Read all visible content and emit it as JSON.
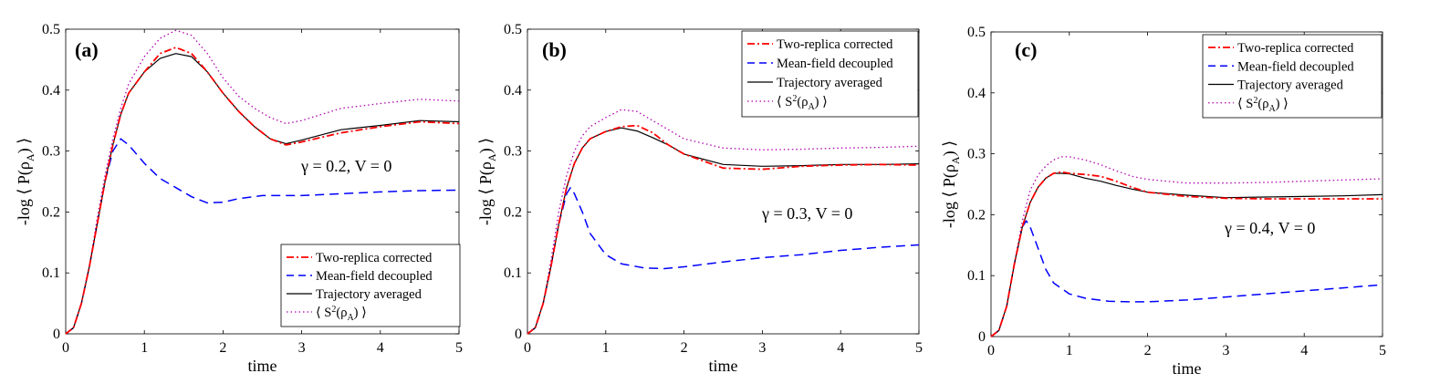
{
  "chart_data": [
    {
      "type": "line",
      "panel_label": "(a)",
      "annotation": "γ = 0.2, V = 0",
      "xlabel": "time",
      "ylabel_prefix": "-log ⟨ P(ρ",
      "ylabel_sub": "A",
      "ylabel_suffix": ") ⟩",
      "xlim": [
        0,
        5
      ],
      "ylim": [
        0,
        0.5
      ],
      "xticks": [
        "0",
        "1",
        "2",
        "3",
        "4",
        "5"
      ],
      "yticks": [
        "0",
        "0.1",
        "0.2",
        "0.3",
        "0.4",
        "0.5"
      ],
      "legend_position": "bottom-right",
      "series": [
        {
          "name": "Two-replica corrected",
          "color": "#ff0000",
          "style": "dashdot",
          "x": [
            0,
            0.1,
            0.2,
            0.3,
            0.4,
            0.5,
            0.6,
            0.7,
            0.8,
            1.0,
            1.2,
            1.4,
            1.6,
            1.8,
            2.0,
            2.2,
            2.4,
            2.6,
            2.8,
            3.0,
            3.5,
            4.0,
            4.5,
            5.0
          ],
          "y": [
            0,
            0.01,
            0.05,
            0.11,
            0.18,
            0.25,
            0.31,
            0.36,
            0.395,
            0.43,
            0.46,
            0.47,
            0.46,
            0.43,
            0.395,
            0.365,
            0.34,
            0.32,
            0.31,
            0.315,
            0.33,
            0.34,
            0.348,
            0.345
          ]
        },
        {
          "name": "Mean-field decoupled",
          "color": "#0000ff",
          "style": "dashed",
          "x": [
            0,
            0.1,
            0.2,
            0.3,
            0.4,
            0.5,
            0.6,
            0.7,
            0.8,
            1.0,
            1.2,
            1.4,
            1.6,
            1.8,
            2.0,
            2.2,
            2.5,
            3.0,
            3.5,
            4.0,
            4.5,
            5.0
          ],
          "y": [
            0,
            0.01,
            0.05,
            0.11,
            0.18,
            0.25,
            0.3,
            0.32,
            0.31,
            0.28,
            0.255,
            0.24,
            0.225,
            0.215,
            0.216,
            0.222,
            0.227,
            0.227,
            0.23,
            0.233,
            0.235,
            0.236
          ]
        },
        {
          "name": "Trajectory averaged",
          "color": "#000000",
          "style": "solid",
          "x": [
            0,
            0.1,
            0.2,
            0.3,
            0.4,
            0.5,
            0.6,
            0.7,
            0.8,
            1.0,
            1.2,
            1.4,
            1.6,
            1.8,
            2.0,
            2.2,
            2.4,
            2.6,
            2.8,
            3.0,
            3.5,
            4.0,
            4.5,
            5.0
          ],
          "y": [
            0,
            0.01,
            0.05,
            0.11,
            0.18,
            0.25,
            0.31,
            0.36,
            0.395,
            0.43,
            0.452,
            0.46,
            0.455,
            0.43,
            0.395,
            0.365,
            0.34,
            0.32,
            0.312,
            0.318,
            0.335,
            0.342,
            0.35,
            0.348
          ]
        },
        {
          "name": "⟨ S²(ρ_A) ⟩",
          "color": "#b000b0",
          "style": "dotted",
          "x": [
            0,
            0.1,
            0.2,
            0.3,
            0.4,
            0.5,
            0.6,
            0.7,
            0.8,
            1.0,
            1.2,
            1.4,
            1.6,
            1.8,
            2.0,
            2.2,
            2.4,
            2.6,
            2.8,
            3.0,
            3.5,
            4.0,
            4.5,
            5.0
          ],
          "y": [
            0,
            0.01,
            0.05,
            0.11,
            0.19,
            0.26,
            0.32,
            0.37,
            0.41,
            0.455,
            0.485,
            0.498,
            0.49,
            0.46,
            0.42,
            0.39,
            0.37,
            0.355,
            0.345,
            0.35,
            0.37,
            0.378,
            0.385,
            0.382
          ]
        }
      ]
    },
    {
      "type": "line",
      "panel_label": "(b)",
      "annotation": "γ = 0.3, V = 0",
      "xlabel": "time",
      "ylabel_prefix": "-log ⟨ P(ρ",
      "ylabel_sub": "A",
      "ylabel_suffix": ") ⟩",
      "xlim": [
        0,
        5
      ],
      "ylim": [
        0,
        0.5
      ],
      "xticks": [
        "0",
        "1",
        "2",
        "3",
        "4",
        "5"
      ],
      "yticks": [
        "0",
        "0.1",
        "0.2",
        "0.3",
        "0.4",
        "0.5"
      ],
      "legend_position": "top-right",
      "series": [
        {
          "name": "Two-replica corrected",
          "color": "#ff0000",
          "style": "dashdot",
          "x": [
            0,
            0.1,
            0.2,
            0.3,
            0.4,
            0.5,
            0.6,
            0.7,
            0.8,
            1.0,
            1.2,
            1.4,
            1.6,
            1.8,
            2.0,
            2.5,
            3.0,
            3.5,
            4.0,
            4.5,
            5.0
          ],
          "y": [
            0,
            0.01,
            0.05,
            0.11,
            0.18,
            0.24,
            0.28,
            0.305,
            0.32,
            0.332,
            0.34,
            0.342,
            0.33,
            0.31,
            0.295,
            0.272,
            0.27,
            0.275,
            0.277,
            0.278,
            0.277
          ]
        },
        {
          "name": "Mean-field decoupled",
          "color": "#0000ff",
          "style": "dashed",
          "x": [
            0,
            0.1,
            0.2,
            0.3,
            0.4,
            0.5,
            0.55,
            0.6,
            0.7,
            0.8,
            1.0,
            1.2,
            1.5,
            1.75,
            2.0,
            2.5,
            3.0,
            3.5,
            4.0,
            4.5,
            5.0
          ],
          "y": [
            0,
            0.01,
            0.05,
            0.11,
            0.18,
            0.23,
            0.24,
            0.23,
            0.2,
            0.165,
            0.13,
            0.115,
            0.108,
            0.107,
            0.11,
            0.118,
            0.125,
            0.13,
            0.137,
            0.142,
            0.146
          ]
        },
        {
          "name": "Trajectory averaged",
          "color": "#000000",
          "style": "solid",
          "x": [
            0,
            0.1,
            0.2,
            0.3,
            0.4,
            0.5,
            0.6,
            0.7,
            0.8,
            1.0,
            1.2,
            1.4,
            1.6,
            1.8,
            2.0,
            2.5,
            3.0,
            3.5,
            4.0,
            4.5,
            5.0
          ],
          "y": [
            0,
            0.01,
            0.05,
            0.11,
            0.18,
            0.24,
            0.28,
            0.305,
            0.32,
            0.332,
            0.338,
            0.333,
            0.322,
            0.31,
            0.295,
            0.278,
            0.275,
            0.276,
            0.278,
            0.278,
            0.279
          ]
        },
        {
          "name": "⟨ S²(ρ_A) ⟩",
          "color": "#b000b0",
          "style": "dotted",
          "x": [
            0,
            0.1,
            0.2,
            0.3,
            0.4,
            0.5,
            0.6,
            0.7,
            0.8,
            1.0,
            1.2,
            1.4,
            1.6,
            1.8,
            2.0,
            2.5,
            3.0,
            3.5,
            4.0,
            4.5,
            5.0
          ],
          "y": [
            0,
            0.01,
            0.05,
            0.12,
            0.2,
            0.26,
            0.3,
            0.325,
            0.34,
            0.355,
            0.368,
            0.365,
            0.35,
            0.335,
            0.32,
            0.305,
            0.302,
            0.303,
            0.305,
            0.306,
            0.308
          ]
        }
      ]
    },
    {
      "type": "line",
      "panel_label": "(c)",
      "annotation": "γ = 0.4, V = 0",
      "xlabel": "time",
      "ylabel_prefix": "-log ⟨ P(ρ",
      "ylabel_sub": "A",
      "ylabel_suffix": ") ⟩",
      "xlim": [
        0,
        5
      ],
      "ylim": [
        0,
        0.5
      ],
      "xticks": [
        "0",
        "1",
        "2",
        "3",
        "4",
        "5"
      ],
      "yticks": [
        "0",
        "0.1",
        "0.2",
        "0.3",
        "0.4",
        "0.5"
      ],
      "legend_position": "top-right",
      "series": [
        {
          "name": "Two-replica corrected",
          "color": "#ff0000",
          "style": "dashdot",
          "x": [
            0,
            0.1,
            0.2,
            0.3,
            0.4,
            0.5,
            0.6,
            0.7,
            0.8,
            0.9,
            1.0,
            1.2,
            1.4,
            1.6,
            1.8,
            2.0,
            2.5,
            3.0,
            3.5,
            4.0,
            4.5,
            5.0
          ],
          "y": [
            0,
            0.01,
            0.05,
            0.12,
            0.18,
            0.22,
            0.245,
            0.26,
            0.268,
            0.27,
            0.268,
            0.266,
            0.263,
            0.255,
            0.245,
            0.237,
            0.23,
            0.227,
            0.226,
            0.226,
            0.226,
            0.226
          ]
        },
        {
          "name": "Mean-field decoupled",
          "color": "#0000ff",
          "style": "dashed",
          "x": [
            0,
            0.1,
            0.2,
            0.3,
            0.4,
            0.45,
            0.5,
            0.6,
            0.7,
            0.8,
            1.0,
            1.2,
            1.5,
            1.8,
            2.0,
            2.5,
            3.0,
            3.5,
            4.0,
            4.5,
            5.0
          ],
          "y": [
            0,
            0.01,
            0.05,
            0.12,
            0.18,
            0.19,
            0.18,
            0.145,
            0.11,
            0.088,
            0.07,
            0.063,
            0.058,
            0.057,
            0.057,
            0.06,
            0.065,
            0.07,
            0.075,
            0.08,
            0.085
          ]
        },
        {
          "name": "Trajectory averaged",
          "color": "#000000",
          "style": "solid",
          "x": [
            0,
            0.1,
            0.2,
            0.3,
            0.4,
            0.5,
            0.6,
            0.7,
            0.8,
            0.9,
            1.0,
            1.2,
            1.4,
            1.6,
            1.8,
            2.0,
            2.5,
            3.0,
            3.5,
            4.0,
            4.5,
            5.0
          ],
          "y": [
            0,
            0.01,
            0.05,
            0.12,
            0.18,
            0.22,
            0.245,
            0.26,
            0.268,
            0.268,
            0.267,
            0.26,
            0.255,
            0.248,
            0.242,
            0.237,
            0.232,
            0.228,
            0.229,
            0.23,
            0.231,
            0.233
          ]
        },
        {
          "name": "⟨ S²(ρ_A) ⟩",
          "color": "#b000b0",
          "style": "dotted",
          "x": [
            0,
            0.1,
            0.2,
            0.3,
            0.4,
            0.5,
            0.6,
            0.7,
            0.8,
            0.9,
            1.0,
            1.2,
            1.4,
            1.6,
            1.8,
            2.0,
            2.5,
            3.0,
            3.5,
            4.0,
            4.5,
            5.0
          ],
          "y": [
            0,
            0.01,
            0.05,
            0.12,
            0.19,
            0.24,
            0.265,
            0.28,
            0.29,
            0.295,
            0.295,
            0.29,
            0.282,
            0.272,
            0.263,
            0.258,
            0.252,
            0.252,
            0.253,
            0.255,
            0.257,
            0.259
          ]
        }
      ]
    }
  ]
}
